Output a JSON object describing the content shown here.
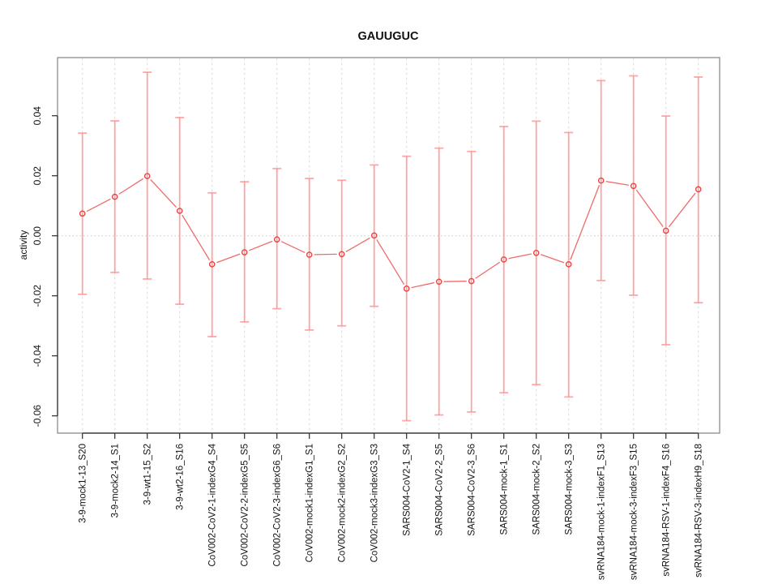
{
  "title": "GAUUGUC",
  "ylabel": "activity",
  "colors": {
    "point": "#e64545",
    "series_line": "#ef5a5a",
    "error_bar": "#ff8e8e",
    "grid": "#dcdcdc",
    "zero_line": "#c8c8c8",
    "frame": "#8c8c8c",
    "axis": "#2a2a2a",
    "text": "#111111",
    "background": "#ffffff"
  },
  "chart_data": {
    "type": "scatter",
    "subtype": "points-with-error-bars",
    "title": "GAUUGUC",
    "xlabel": "",
    "ylabel": "activity",
    "ylim": [
      -0.066,
      0.059
    ],
    "grid": {
      "vertical_gridlines": "dashed at every category",
      "horizontal_zero_line": "dotted at y=0"
    },
    "legend": "none",
    "yticks": [
      0.04,
      0.02,
      0.0,
      -0.02,
      -0.04,
      -0.06
    ],
    "ytick_labels": [
      "0.04",
      "0.02",
      "0.00",
      "-0.02",
      "-0.04",
      "-0.06"
    ],
    "categories": [
      "3-9-mock1-13_S20",
      "3-9-mock2-14_S1",
      "3-9-wt1-15_S2",
      "3-9-wt2-16_S16",
      "CoV002-CoV2-1-indexG4_S4",
      "CoV002-CoV2-2-indexG5_S5",
      "CoV002-CoV2-3-indexG6_S6",
      "CoV002-mock1-indexG1_S1",
      "CoV002-mock2-indexG2_S2",
      "CoV002-mock3-indexG3_S3",
      "SARS004-CoV2-1_S4",
      "SARS004-CoV2-2_S5",
      "SARS004-CoV2-3_S6",
      "SARS004-mock-1_S1",
      "SARS004-mock-2_S2",
      "SARS004-mock-3_S3",
      "svRNA184-mock-1-indexF1_S13",
      "svRNA184-mock-3-indexF3_S15",
      "svRNA184-RSV-1-indexF4_S16",
      "svRNA184-RSV-3-indexH9_S18"
    ],
    "series": [
      {
        "name": "activity",
        "values": [
          0.0074,
          0.013,
          0.0199,
          0.0083,
          -0.0095,
          -0.0055,
          -0.0012,
          -0.0063,
          -0.0061,
          0.0001,
          -0.0176,
          -0.0153,
          -0.0151,
          -0.0079,
          -0.0057,
          -0.0095,
          0.0184,
          0.0166,
          0.0017,
          0.0155
        ],
        "error_high": [
          0.0342,
          0.0383,
          0.0545,
          0.0394,
          0.0143,
          0.018,
          0.0224,
          0.0191,
          0.0185,
          0.0236,
          0.0265,
          0.0292,
          0.0281,
          0.0364,
          0.0382,
          0.0344,
          0.0517,
          0.0533,
          0.0399,
          0.0529
        ],
        "error_low": [
          -0.0195,
          -0.0122,
          -0.0144,
          -0.0228,
          -0.0336,
          -0.0287,
          -0.0243,
          -0.0314,
          -0.03,
          -0.0235,
          -0.0616,
          -0.0597,
          -0.0587,
          -0.0523,
          -0.0496,
          -0.0537,
          -0.0149,
          -0.0198,
          -0.0363,
          -0.0223
        ]
      }
    ]
  }
}
